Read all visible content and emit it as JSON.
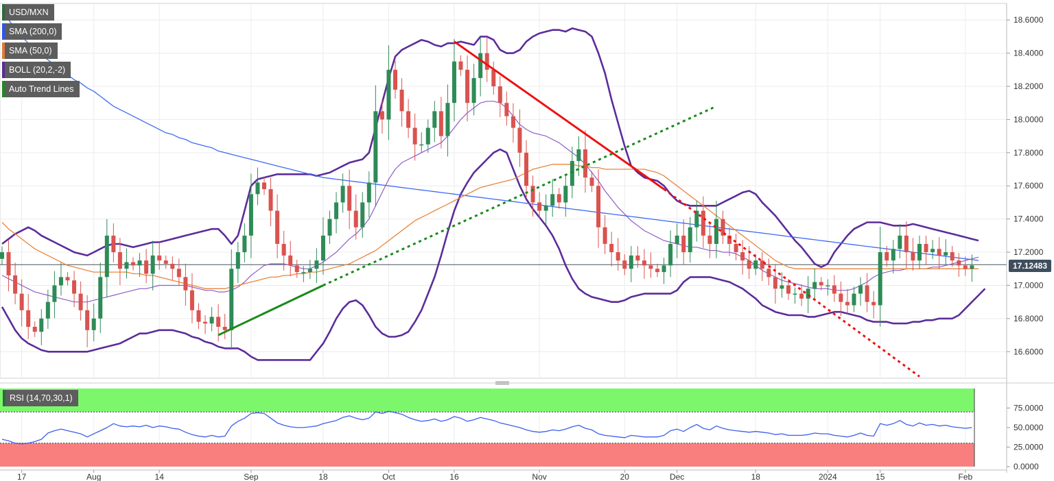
{
  "indicators": [
    {
      "label": "USD/MXN",
      "color": "#2e6a3d"
    },
    {
      "label": "SMA (200,0)",
      "color": "#2f54eb"
    },
    {
      "label": "SMA (50,0)",
      "color": "#e07b39"
    },
    {
      "label": "BOLL (20,2,-2)",
      "color": "#5b2c9a"
    },
    {
      "label": "Auto Trend Lines",
      "color": "#1f8a1f"
    }
  ],
  "rsi": {
    "label": "RSI (14,70,30,1)",
    "color": "#2e6a3d"
  },
  "current_price": "17.12483",
  "colors": {
    "up": "#2e8b57",
    "down": "#d9534f",
    "sma200": "#3d6af2",
    "sma50": "#e8853d",
    "boll_outer": "#5b2c9a",
    "boll_mid": "#8e5bc9",
    "resistance": "#ee1111",
    "support": "#1a8a1a",
    "rsi_line": "#3a5ef0",
    "rsi_overbought": "#7cf76c",
    "rsi_oversold": "#f97f7f"
  },
  "chart_data": [
    {
      "type": "candlestick",
      "title": "USD/MXN",
      "ylim": [
        16.44,
        18.7
      ],
      "y_ticks": [
        "18.6000",
        "18.4000",
        "18.2000",
        "18.0000",
        "17.8000",
        "17.6000",
        "17.4000",
        "17.2000",
        "17.0000",
        "16.8000",
        "16.6000"
      ],
      "y_tick_values": [
        18.6,
        18.4,
        18.2,
        18.0,
        17.8,
        17.6,
        17.4,
        17.2,
        17.0,
        16.8,
        16.6
      ],
      "x_ticks": [
        {
          "label": "17",
          "index": 3
        },
        {
          "label": "Aug",
          "index": 14
        },
        {
          "label": "14",
          "index": 24
        },
        {
          "label": "Sep",
          "index": 38
        },
        {
          "label": "18",
          "index": 49
        },
        {
          "label": "Oct",
          "index": 59
        },
        {
          "label": "16",
          "index": 69
        },
        {
          "label": "Nov",
          "index": 82
        },
        {
          "label": "20",
          "index": 95
        },
        {
          "label": "Dec",
          "index": 103
        },
        {
          "label": "18",
          "index": 115
        },
        {
          "label": "2024",
          "index": 126
        },
        {
          "label": "15",
          "index": 134
        },
        {
          "label": "Feb",
          "index": 147
        }
      ],
      "close": [
        17.2,
        17.06,
        16.95,
        16.85,
        16.75,
        16.72,
        16.8,
        16.9,
        17.0,
        17.05,
        17.03,
        16.95,
        16.85,
        16.73,
        16.8,
        17.05,
        17.3,
        17.2,
        17.1,
        17.14,
        17.12,
        17.15,
        17.07,
        17.18,
        17.15,
        17.13,
        17.1,
        17.05,
        16.97,
        16.85,
        16.78,
        16.77,
        16.81,
        16.75,
        16.73,
        17.1,
        17.2,
        17.3,
        17.55,
        17.62,
        17.58,
        17.45,
        17.25,
        17.18,
        17.12,
        17.08,
        17.08,
        17.1,
        17.15,
        17.3,
        17.4,
        17.5,
        17.6,
        17.45,
        17.35,
        17.5,
        17.62,
        18.05,
        18.0,
        18.3,
        18.18,
        18.05,
        17.95,
        17.85,
        17.85,
        17.95,
        18.05,
        17.9,
        18.1,
        18.35,
        18.3,
        18.1,
        18.25,
        18.4,
        18.3,
        18.2,
        18.1,
        18.02,
        17.95,
        17.8,
        17.6,
        17.5,
        17.45,
        17.48,
        17.55,
        17.5,
        17.6,
        17.75,
        17.82,
        17.65,
        17.6,
        17.35,
        17.25,
        17.2,
        17.15,
        17.1,
        17.18,
        17.15,
        17.12,
        17.1,
        17.08,
        17.12,
        17.25,
        17.3,
        17.2,
        17.35,
        17.45,
        17.3,
        17.25,
        17.4,
        17.3,
        17.25,
        17.2,
        17.15,
        17.1,
        17.15,
        17.1,
        17.05,
        16.98,
        17.0,
        16.95,
        16.95,
        16.92,
        16.98,
        17.02,
        17.0,
        17.0,
        16.95,
        16.9,
        16.88,
        16.95,
        17.0,
        16.9,
        16.88,
        17.2,
        17.15,
        17.22,
        17.3,
        17.2,
        17.15,
        17.25,
        17.2,
        17.22,
        17.18,
        17.2,
        17.15,
        17.12,
        17.1,
        17.12
      ],
      "sma200": [
        18.65,
        18.6,
        18.55,
        18.5,
        18.46,
        18.42,
        18.39,
        18.36,
        18.33,
        18.3,
        18.27,
        18.24,
        18.22,
        18.19,
        18.17,
        18.14,
        18.11,
        18.08,
        18.06,
        18.04,
        18.02,
        18.0,
        17.98,
        17.96,
        17.94,
        17.92,
        17.91,
        17.89,
        17.88,
        17.86,
        17.85,
        17.84,
        17.83,
        17.81,
        17.8,
        17.79,
        17.78,
        17.77,
        17.76,
        17.75,
        17.74,
        17.73,
        17.72,
        17.71,
        17.7,
        17.69,
        17.68,
        17.67,
        17.66,
        17.65,
        17.645,
        17.64,
        17.635,
        17.63,
        17.625,
        17.62,
        17.615,
        17.61,
        17.605,
        17.6,
        17.595,
        17.59,
        17.585,
        17.58,
        17.575,
        17.57,
        17.565,
        17.56,
        17.555,
        17.55,
        17.545,
        17.54,
        17.535,
        17.53,
        17.525,
        17.52,
        17.515,
        17.51,
        17.505,
        17.5,
        17.495,
        17.49,
        17.485,
        17.48,
        17.475,
        17.47,
        17.465,
        17.46,
        17.455,
        17.45,
        17.445,
        17.44,
        17.435,
        17.43,
        17.425,
        17.42,
        17.415,
        17.41,
        17.405,
        17.4,
        17.395,
        17.39,
        17.385,
        17.38,
        17.375,
        17.37,
        17.365,
        17.36,
        17.355,
        17.35,
        17.345,
        17.34,
        17.335,
        17.33,
        17.325,
        17.32,
        17.315,
        17.31,
        17.305,
        17.3,
        17.295,
        17.29,
        17.285,
        17.28,
        17.275,
        17.27,
        17.265,
        17.26,
        17.255,
        17.25,
        17.245,
        17.24,
        17.235,
        17.23,
        17.225,
        17.22,
        17.215,
        17.21,
        17.205,
        17.2,
        17.195,
        17.19,
        17.185,
        17.18,
        17.175,
        17.17,
        17.165,
        17.16,
        17.155,
        17.15
      ],
      "sma50": [
        17.38,
        17.34,
        17.31,
        17.28,
        17.25,
        17.22,
        17.2,
        17.18,
        17.16,
        17.14,
        17.12,
        17.11,
        17.1,
        17.09,
        17.08,
        17.08,
        17.08,
        17.08,
        17.08,
        17.08,
        17.07,
        17.07,
        17.06,
        17.06,
        17.05,
        17.04,
        17.03,
        17.02,
        17.01,
        17.0,
        16.99,
        16.98,
        16.98,
        16.98,
        16.98,
        16.99,
        17.0,
        17.01,
        17.02,
        17.03,
        17.04,
        17.05,
        17.05,
        17.06,
        17.06,
        17.07,
        17.07,
        17.08,
        17.08,
        17.09,
        17.1,
        17.11,
        17.12,
        17.13,
        17.15,
        17.17,
        17.19,
        17.21,
        17.24,
        17.27,
        17.3,
        17.33,
        17.36,
        17.39,
        17.41,
        17.43,
        17.45,
        17.47,
        17.49,
        17.51,
        17.53,
        17.55,
        17.57,
        17.59,
        17.6,
        17.61,
        17.62,
        17.63,
        17.64,
        17.66,
        17.68,
        17.7,
        17.71,
        17.72,
        17.73,
        17.73,
        17.73,
        17.73,
        17.72,
        17.72,
        17.71,
        17.71,
        17.7,
        17.7,
        17.7,
        17.7,
        17.7,
        17.7,
        17.7,
        17.69,
        17.68,
        17.66,
        17.63,
        17.6,
        17.57,
        17.54,
        17.51,
        17.48,
        17.45,
        17.42,
        17.39,
        17.36,
        17.33,
        17.3,
        17.27,
        17.24,
        17.21,
        17.18,
        17.15,
        17.13,
        17.11,
        17.1,
        17.1,
        17.1,
        17.1,
        17.1,
        17.1,
        17.1,
        17.1,
        17.1,
        17.1,
        17.1,
        17.1,
        17.1,
        17.1,
        17.1,
        17.1,
        17.1,
        17.1,
        17.1,
        17.1,
        17.1,
        17.1,
        17.1,
        17.1,
        17.1,
        17.1,
        17.1,
        17.1,
        17.1
      ],
      "boll_upper": [
        17.25,
        17.28,
        17.31,
        17.33,
        17.35,
        17.33,
        17.3,
        17.28,
        17.26,
        17.24,
        17.22,
        17.2,
        17.19,
        17.18,
        17.2,
        17.22,
        17.24,
        17.25,
        17.25,
        17.24,
        17.23,
        17.24,
        17.25,
        17.26,
        17.26,
        17.27,
        17.28,
        17.29,
        17.3,
        17.31,
        17.32,
        17.33,
        17.34,
        17.34,
        17.3,
        17.25,
        17.3,
        17.45,
        17.6,
        17.64,
        17.65,
        17.66,
        17.67,
        17.67,
        17.67,
        17.67,
        17.67,
        17.67,
        17.66,
        17.67,
        17.68,
        17.7,
        17.72,
        17.74,
        17.75,
        17.76,
        17.8,
        17.95,
        18.1,
        18.25,
        18.38,
        18.42,
        18.44,
        18.46,
        18.48,
        18.47,
        18.45,
        18.44,
        18.46,
        18.46,
        18.47,
        18.46,
        18.45,
        18.5,
        18.5,
        18.48,
        18.42,
        18.4,
        18.4,
        18.42,
        18.47,
        18.5,
        18.52,
        18.53,
        18.54,
        18.54,
        18.53,
        18.55,
        18.54,
        18.53,
        18.5,
        18.4,
        18.28,
        18.12,
        17.98,
        17.84,
        17.72,
        17.68,
        17.65,
        17.64,
        17.63,
        17.6,
        17.55,
        17.51,
        17.49,
        17.48,
        17.48,
        17.48,
        17.48,
        17.48,
        17.5,
        17.52,
        17.54,
        17.56,
        17.57,
        17.55,
        17.5,
        17.46,
        17.42,
        17.37,
        17.32,
        17.27,
        17.23,
        17.18,
        17.13,
        17.11,
        17.13,
        17.2,
        17.25,
        17.3,
        17.34,
        17.36,
        17.38,
        17.38,
        17.38,
        17.37,
        17.36,
        17.36,
        17.36,
        17.37,
        17.36,
        17.35,
        17.34,
        17.33,
        17.32,
        17.31,
        17.3,
        17.29,
        17.28,
        17.27
      ],
      "boll_mid": [
        17.06,
        17.04,
        17.02,
        17.0,
        16.98,
        16.96,
        16.95,
        16.94,
        16.93,
        16.92,
        16.91,
        16.9,
        16.9,
        16.9,
        16.91,
        16.92,
        16.93,
        16.94,
        16.95,
        16.96,
        16.97,
        16.98,
        16.98,
        16.99,
        17.0,
        17.0,
        17.0,
        17.0,
        17.0,
        16.99,
        16.98,
        16.97,
        16.97,
        16.96,
        16.96,
        16.97,
        16.99,
        17.02,
        17.06,
        17.09,
        17.12,
        17.13,
        17.13,
        17.13,
        17.12,
        17.11,
        17.1,
        17.1,
        17.12,
        17.14,
        17.17,
        17.2,
        17.24,
        17.28,
        17.31,
        17.35,
        17.4,
        17.48,
        17.56,
        17.64,
        17.7,
        17.74,
        17.76,
        17.78,
        17.8,
        17.82,
        17.84,
        17.86,
        17.9,
        17.95,
        18.0,
        18.04,
        18.07,
        18.1,
        18.11,
        18.11,
        18.1,
        18.07,
        18.02,
        17.97,
        17.94,
        17.92,
        17.91,
        17.9,
        17.88,
        17.86,
        17.83,
        17.8,
        17.77,
        17.73,
        17.68,
        17.63,
        17.57,
        17.52,
        17.47,
        17.43,
        17.39,
        17.36,
        17.33,
        17.31,
        17.29,
        17.27,
        17.26,
        17.25,
        17.24,
        17.23,
        17.23,
        17.22,
        17.21,
        17.21,
        17.2,
        17.2,
        17.19,
        17.17,
        17.15,
        17.12,
        17.09,
        17.07,
        17.05,
        17.03,
        17.02,
        17.01,
        17.0,
        16.99,
        16.98,
        16.98,
        16.98,
        16.97,
        16.97,
        16.97,
        16.98,
        17.0,
        17.02,
        17.05,
        17.07,
        17.08,
        17.09,
        17.09,
        17.1,
        17.1,
        17.1,
        17.1,
        17.11,
        17.11,
        17.12,
        17.13,
        17.14,
        17.15,
        17.16,
        17.17
      ],
      "boll_lower": [
        16.87,
        16.8,
        16.73,
        16.68,
        16.65,
        16.63,
        16.61,
        16.6,
        16.6,
        16.6,
        16.6,
        16.6,
        16.6,
        16.6,
        16.61,
        16.62,
        16.63,
        16.64,
        16.65,
        16.67,
        16.69,
        16.71,
        16.71,
        16.72,
        16.73,
        16.73,
        16.73,
        16.72,
        16.71,
        16.69,
        16.68,
        16.66,
        16.65,
        16.63,
        16.62,
        16.62,
        16.62,
        16.6,
        16.57,
        16.55,
        16.55,
        16.55,
        16.55,
        16.55,
        16.55,
        16.55,
        16.55,
        16.55,
        16.6,
        16.65,
        16.72,
        16.8,
        16.86,
        16.9,
        16.91,
        16.88,
        16.82,
        16.75,
        16.71,
        16.69,
        16.69,
        16.7,
        16.72,
        16.78,
        16.85,
        16.95,
        17.05,
        17.18,
        17.32,
        17.45,
        17.55,
        17.62,
        17.68,
        17.72,
        17.76,
        17.8,
        17.82,
        17.8,
        17.7,
        17.6,
        17.52,
        17.46,
        17.41,
        17.36,
        17.3,
        17.22,
        17.12,
        17.04,
        16.98,
        16.95,
        16.93,
        16.92,
        16.91,
        16.9,
        16.9,
        16.91,
        16.93,
        16.94,
        16.95,
        16.95,
        16.95,
        16.95,
        16.95,
        16.97,
        17.02,
        17.05,
        17.05,
        17.05,
        17.05,
        17.04,
        17.03,
        17.02,
        17.0,
        16.98,
        16.95,
        16.92,
        16.88,
        16.86,
        16.84,
        16.83,
        16.82,
        16.82,
        16.82,
        16.81,
        16.81,
        16.82,
        16.83,
        16.84,
        16.84,
        16.83,
        16.82,
        16.81,
        16.79,
        16.78,
        16.78,
        16.78,
        16.77,
        16.77,
        16.77,
        16.78,
        16.78,
        16.79,
        16.79,
        16.8,
        16.8,
        16.8,
        16.82,
        16.86,
        16.9,
        16.94,
        16.98
      ],
      "resistance_line": {
        "from": [
          69,
          18.47
        ],
        "to": [
          101,
          17.58
        ],
        "extended_to": [
          140,
          16.45
        ]
      },
      "support_line": {
        "from": [
          33,
          16.7
        ],
        "to": [
          49,
          17.0
        ],
        "extended_to": [
          109,
          18.08
        ]
      },
      "current_price": 17.12483
    },
    {
      "type": "line",
      "title": "RSI (14,70,30,1)",
      "ylim": [
        0,
        100
      ],
      "y_ticks": [
        "75.0000",
        "50.0000",
        "25.0000",
        "0.0000"
      ],
      "y_tick_values": [
        75,
        50,
        25,
        0
      ],
      "overbought": 70,
      "oversold": 30,
      "values": [
        35,
        33,
        30,
        29,
        30,
        32,
        35,
        43,
        46,
        48,
        46,
        44,
        42,
        38,
        42,
        46,
        50,
        55,
        52,
        51,
        52,
        51,
        53,
        50,
        52,
        51,
        49,
        48,
        44,
        41,
        39,
        38,
        40,
        38,
        39,
        52,
        58,
        62,
        68,
        69,
        68,
        62,
        56,
        53,
        51,
        50,
        50,
        51,
        52,
        55,
        57,
        59,
        63,
        65,
        62,
        60,
        62,
        70,
        68,
        71,
        69,
        67,
        63,
        60,
        58,
        59,
        61,
        58,
        60,
        64,
        62,
        58,
        60,
        63,
        61,
        59,
        56,
        54,
        52,
        50,
        47,
        45,
        44,
        45,
        47,
        46,
        48,
        51,
        53,
        49,
        47,
        42,
        40,
        39,
        38,
        37,
        40,
        39,
        38,
        38,
        38,
        40,
        46,
        48,
        45,
        50,
        54,
        49,
        47,
        52,
        49,
        47,
        46,
        45,
        44,
        45,
        44,
        43,
        41,
        42,
        40,
        40,
        40,
        41,
        43,
        42,
        42,
        40,
        39,
        38,
        40,
        43,
        40,
        39,
        55,
        53,
        55,
        59,
        54,
        52,
        56,
        53,
        54,
        52,
        53,
        51,
        50,
        49,
        50
      ]
    }
  ]
}
